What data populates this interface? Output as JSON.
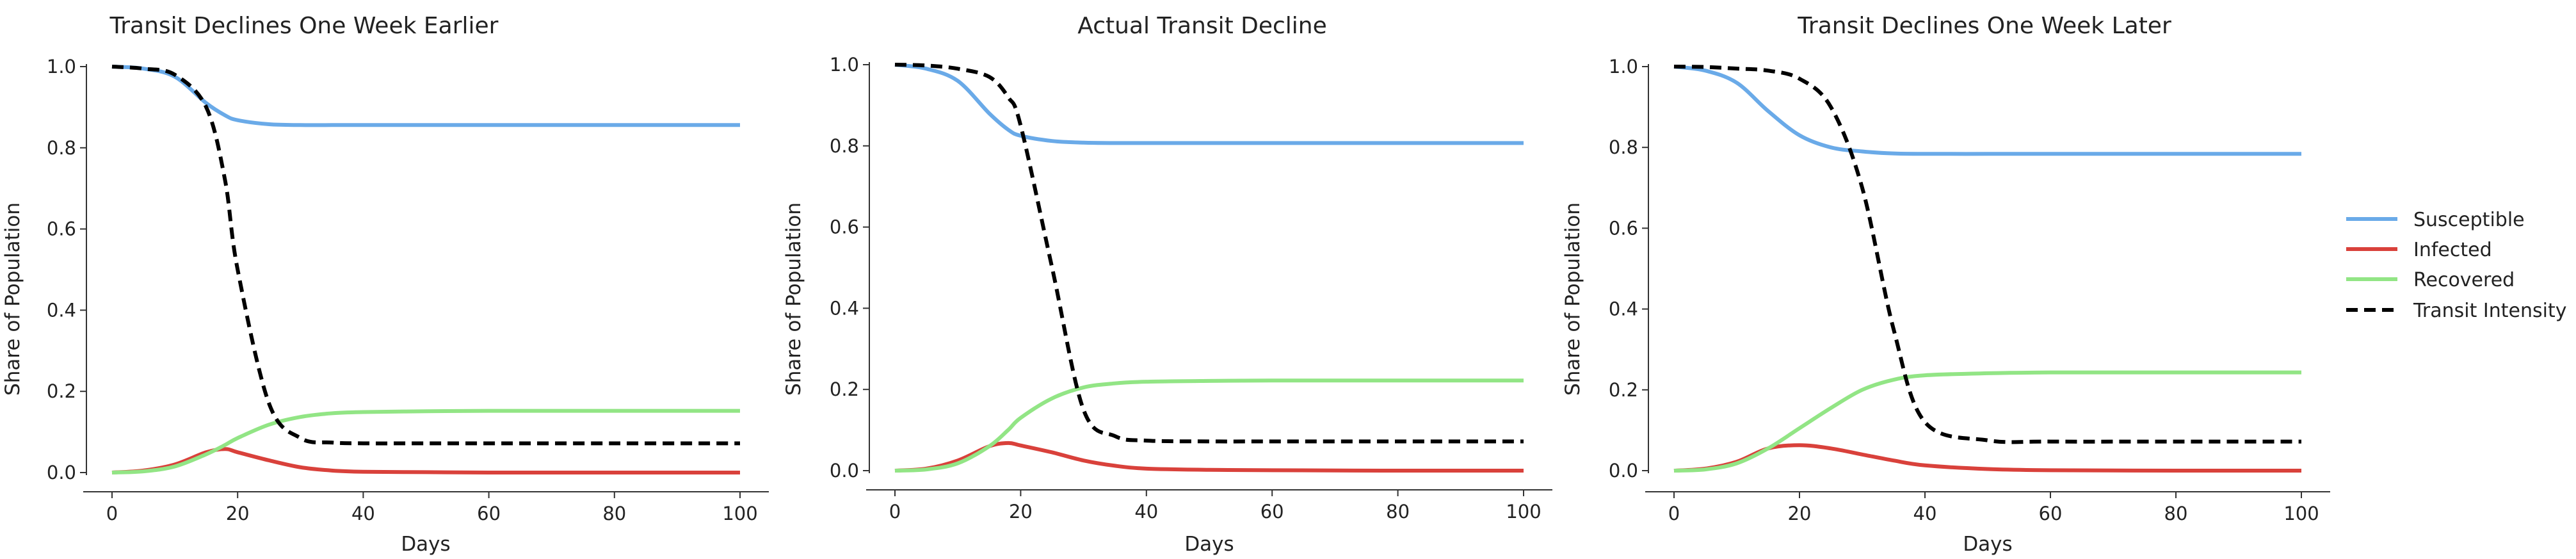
{
  "colors": {
    "susceptible": "#6aaae8",
    "infected": "#d9413b",
    "recovered": "#92e585",
    "transit": "#000000",
    "axis": "#333333"
  },
  "legend": {
    "entries": [
      "Susceptible",
      "Infected",
      "Recovered",
      "Transit Intensity"
    ]
  },
  "chart_data": [
    {
      "type": "line",
      "title": "Transit Declines One Week Earlier",
      "xlabel": "Days",
      "ylabel": "Share of Population",
      "xlim": [
        0,
        100
      ],
      "ylim": [
        0,
        1
      ],
      "xticks": [
        "0",
        "20",
        "40",
        "60",
        "80",
        "100"
      ],
      "yticks": [
        "0.0",
        "0.2",
        "0.4",
        "0.6",
        "0.8",
        "1.0"
      ],
      "x": [
        0,
        5,
        10,
        15,
        18,
        20,
        25,
        30,
        35,
        40,
        50,
        60,
        80,
        100
      ],
      "series": [
        {
          "name": "Susceptible",
          "values": [
            1.0,
            0.995,
            0.975,
            0.91,
            0.88,
            0.868,
            0.858,
            0.856,
            0.856,
            0.856,
            0.856,
            0.856,
            0.856,
            0.856
          ]
        },
        {
          "name": "Infected",
          "values": [
            0.0,
            0.005,
            0.02,
            0.05,
            0.058,
            0.05,
            0.03,
            0.013,
            0.005,
            0.002,
            0.001,
            0.0,
            0.0,
            0.0
          ]
        },
        {
          "name": "Recovered",
          "values": [
            0.0,
            0.003,
            0.015,
            0.045,
            0.068,
            0.085,
            0.118,
            0.137,
            0.146,
            0.149,
            0.151,
            0.152,
            0.152,
            0.152
          ]
        },
        {
          "name": "Transit Intensity",
          "values": [
            1.0,
            0.995,
            0.98,
            0.9,
            0.72,
            0.5,
            0.17,
            0.085,
            0.074,
            0.072,
            0.072,
            0.072,
            0.072,
            0.072
          ]
        }
      ]
    },
    {
      "type": "line",
      "title": "Actual Transit Decline",
      "xlabel": "Days",
      "ylabel": "Share of Population",
      "xlim": [
        0,
        100
      ],
      "ylim": [
        0,
        1
      ],
      "xticks": [
        "0",
        "20",
        "40",
        "60",
        "80",
        "100"
      ],
      "yticks": [
        "0.0",
        "0.2",
        "0.4",
        "0.6",
        "0.8",
        "1.0"
      ],
      "x": [
        0,
        5,
        10,
        15,
        18,
        20,
        25,
        30,
        35,
        40,
        50,
        60,
        80,
        100
      ],
      "series": [
        {
          "name": "Susceptible",
          "values": [
            1.0,
            0.99,
            0.96,
            0.88,
            0.84,
            0.825,
            0.812,
            0.808,
            0.807,
            0.807,
            0.807,
            0.807,
            0.807,
            0.807
          ]
        },
        {
          "name": "Infected",
          "values": [
            0.0,
            0.005,
            0.025,
            0.06,
            0.068,
            0.062,
            0.045,
            0.025,
            0.012,
            0.005,
            0.002,
            0.001,
            0.0,
            0.0
          ]
        },
        {
          "name": "Recovered",
          "values": [
            0.0,
            0.003,
            0.018,
            0.06,
            0.1,
            0.13,
            0.178,
            0.205,
            0.215,
            0.219,
            0.221,
            0.222,
            0.222,
            0.222
          ]
        },
        {
          "name": "Transit Intensity",
          "values": [
            1.0,
            0.998,
            0.99,
            0.97,
            0.92,
            0.85,
            0.5,
            0.15,
            0.085,
            0.074,
            0.072,
            0.072,
            0.072,
            0.072
          ]
        }
      ]
    },
    {
      "type": "line",
      "title": "Transit Declines One Week Later",
      "xlabel": "Days",
      "ylabel": "Share of Population",
      "xlim": [
        0,
        100
      ],
      "ylim": [
        0,
        1
      ],
      "xticks": [
        "0",
        "20",
        "40",
        "60",
        "80",
        "100"
      ],
      "yticks": [
        "0.0",
        "0.2",
        "0.4",
        "0.6",
        "0.8",
        "1.0"
      ],
      "x": [
        0,
        5,
        10,
        15,
        20,
        25,
        30,
        35,
        40,
        50,
        60,
        80,
        100
      ],
      "series": [
        {
          "name": "Susceptible",
          "values": [
            1.0,
            0.99,
            0.96,
            0.89,
            0.83,
            0.8,
            0.79,
            0.785,
            0.784,
            0.784,
            0.784,
            0.784,
            0.784
          ]
        },
        {
          "name": "Infected",
          "values": [
            0.0,
            0.005,
            0.022,
            0.055,
            0.063,
            0.055,
            0.04,
            0.025,
            0.013,
            0.004,
            0.001,
            0.0,
            0.0
          ]
        },
        {
          "name": "Recovered",
          "values": [
            0.0,
            0.003,
            0.018,
            0.055,
            0.105,
            0.155,
            0.2,
            0.225,
            0.236,
            0.241,
            0.243,
            0.243,
            0.243
          ]
        },
        {
          "name": "Transit Intensity",
          "values": [
            1.0,
            0.999,
            0.995,
            0.99,
            0.97,
            0.9,
            0.7,
            0.35,
            0.12,
            0.075,
            0.072,
            0.072,
            0.072
          ]
        }
      ]
    }
  ]
}
